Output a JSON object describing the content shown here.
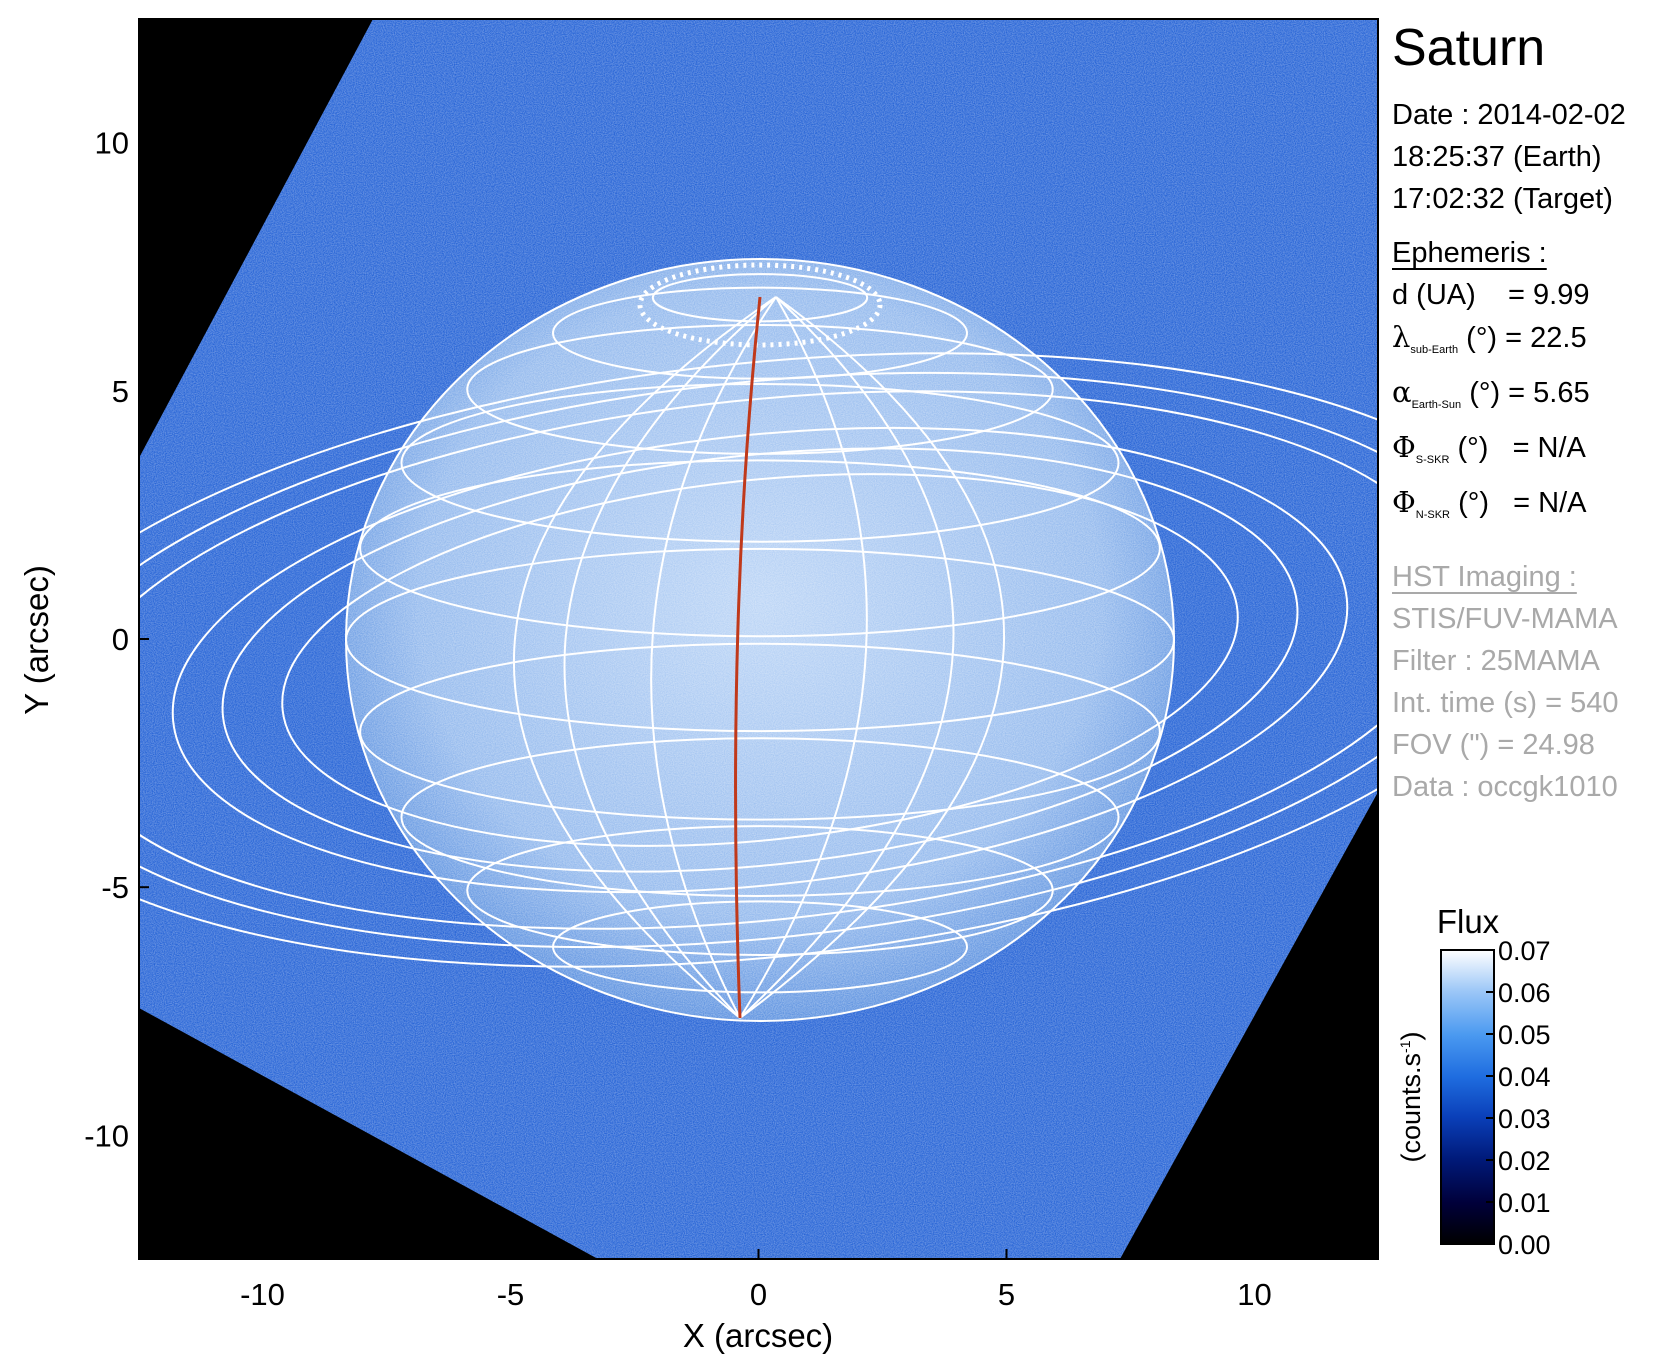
{
  "target": "Saturn",
  "observation": {
    "date_line": "Date : 2014-02-02",
    "earth_time": "18:25:37 (Earth)",
    "target_time": "17:02:32 (Target)"
  },
  "ephemeris": {
    "heading": "Ephemeris :",
    "d_label": "d (UA)",
    "d_value": "= 9.99",
    "lambda_symbol": "λ",
    "lambda_sub": "sub-Earth",
    "lambda_unit": "(°)",
    "lambda_value": "= 22.5",
    "alpha_symbol": "α",
    "alpha_sub": "Earth-Sun",
    "alpha_unit": "(°)",
    "alpha_value": "= 5.65",
    "phis_symbol": "Φ",
    "phis_sub": "S-SKR",
    "phis_unit": "(°)",
    "phis_value": "= N/A",
    "phin_symbol": "Φ",
    "phin_sub": "N-SKR",
    "phin_unit": "(°)",
    "phin_value": "= N/A"
  },
  "imaging": {
    "heading": "HST Imaging :",
    "instrument": "STIS/FUV-MAMA",
    "filter": "Filter : 25MAMA",
    "int_time": "Int. time (s) = 540",
    "fov": "FOV (\") = 24.98",
    "data": "Data : occgk1010"
  },
  "axes": {
    "x_label": "X (arcsec)",
    "y_label": "Y (arcsec)",
    "x_range": [
      -12.49,
      12.49
    ],
    "y_range": [
      -12.49,
      12.49
    ],
    "x_ticks": [
      "-10",
      "-5",
      "0",
      "5",
      "10"
    ],
    "y_ticks": [
      "10",
      "5",
      "0",
      "-5",
      "-10"
    ]
  },
  "colorbar": {
    "title": "Flux",
    "unit": "(counts.s",
    "unit_sup": "-1",
    "unit_close": ")",
    "range": [
      0.0,
      0.07
    ],
    "ticks": [
      "0.07",
      "0.06",
      "0.05",
      "0.04",
      "0.03",
      "0.02",
      "0.01",
      "0.00"
    ]
  },
  "colors": {
    "image_blue": "#2563d6",
    "disk_light": "#9cc0ef",
    "grid_line": "#ffffff",
    "meridian": "#c0391b",
    "grey_text": "#a9a9a9"
  }
}
